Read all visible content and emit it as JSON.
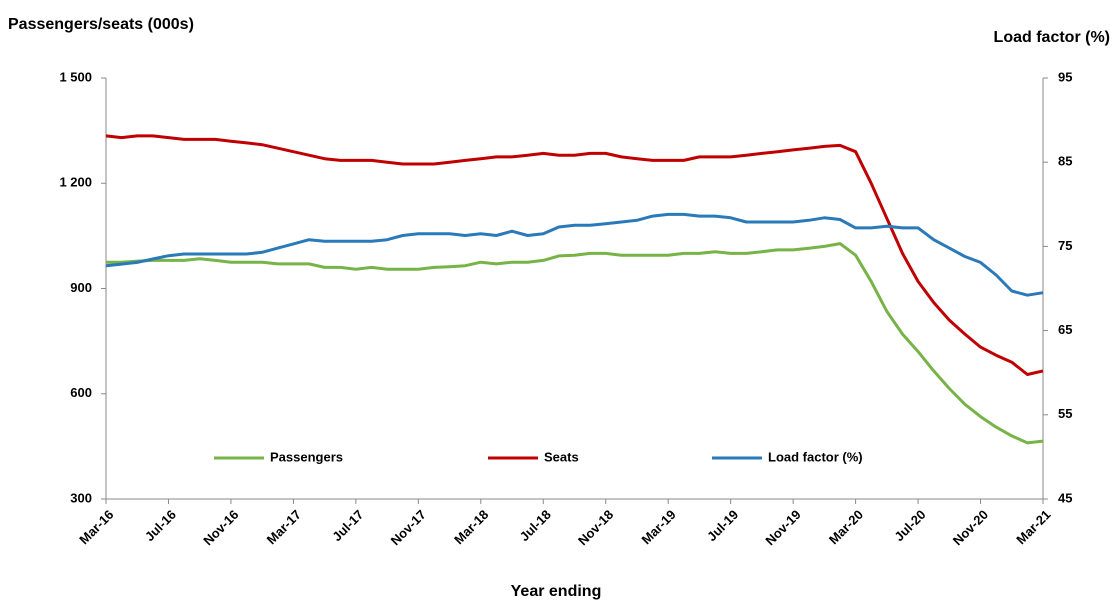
{
  "chart_data": {
    "type": "line",
    "y_label": "Passengers/seats (000s)",
    "y2_label": "Load factor (%)",
    "x_label": "Year ending",
    "categories": [
      "Mar-16",
      null,
      null,
      null,
      "Jul-16",
      null,
      null,
      null,
      "Nov-16",
      null,
      null,
      null,
      "Mar-17",
      null,
      null,
      null,
      "Jul-17",
      null,
      null,
      null,
      "Nov-17",
      null,
      null,
      null,
      "Mar-18",
      null,
      null,
      null,
      "Jul-18",
      null,
      null,
      null,
      "Nov-18",
      null,
      null,
      null,
      "Mar-19",
      null,
      null,
      null,
      "Jul-19",
      null,
      null,
      null,
      "Nov-19",
      null,
      null,
      null,
      "Mar-20",
      null,
      null,
      null,
      "Jul-20",
      null,
      null,
      null,
      "Nov-20",
      null,
      null,
      null,
      "Mar-21"
    ],
    "ylim": [
      300,
      1500
    ],
    "yticks": [
      {
        "value": 300,
        "label": "300"
      },
      {
        "value": 600,
        "label": "600"
      },
      {
        "value": 900,
        "label": "900"
      },
      {
        "value": 1200,
        "label": "1 200"
      },
      {
        "value": 1500,
        "label": "1 500"
      }
    ],
    "y2lim": [
      45,
      95
    ],
    "y2ticks": [
      45,
      55,
      65,
      75,
      85,
      95
    ],
    "legend": "inside-bottom",
    "series": [
      {
        "name": "Passengers",
        "color": "#77b347",
        "values": [
          975,
          975,
          978,
          980,
          980,
          980,
          985,
          980,
          975,
          975,
          975,
          970,
          970,
          970,
          960,
          960,
          955,
          960,
          955,
          955,
          955,
          960,
          962,
          965,
          975,
          970,
          975,
          975,
          980,
          993,
          995,
          1000,
          1000,
          995,
          995,
          995,
          995,
          1000,
          1000,
          1005,
          1000,
          1000,
          1005,
          1010,
          1010,
          1015,
          1020,
          1028,
          995,
          920,
          835,
          770,
          720,
          665,
          615,
          570,
          535,
          505,
          480,
          460,
          465
        ]
      },
      {
        "name": "Seats",
        "color": "#c00000",
        "values": [
          1335,
          1330,
          1335,
          1335,
          1330,
          1325,
          1325,
          1325,
          1320,
          1315,
          1310,
          1300,
          1290,
          1280,
          1270,
          1265,
          1265,
          1265,
          1260,
          1255,
          1255,
          1255,
          1260,
          1265,
          1270,
          1275,
          1275,
          1280,
          1285,
          1280,
          1280,
          1285,
          1285,
          1275,
          1270,
          1265,
          1265,
          1265,
          1275,
          1275,
          1275,
          1280,
          1285,
          1290,
          1295,
          1300,
          1305,
          1308,
          1290,
          1200,
          1100,
          1000,
          920,
          860,
          810,
          770,
          733,
          710,
          690,
          655,
          665
        ]
      },
      {
        "name": "Load factor (%)",
        "color": "#2a7ab9",
        "axis": "y2",
        "values": [
          72.7,
          72.9,
          73.1,
          73.5,
          73.9,
          74.1,
          74.1,
          74.1,
          74.1,
          74.1,
          74.3,
          74.8,
          75.3,
          75.8,
          75.6,
          75.6,
          75.6,
          75.6,
          75.8,
          76.3,
          76.5,
          76.5,
          76.5,
          76.3,
          76.5,
          76.3,
          76.8,
          76.3,
          76.5,
          77.3,
          77.5,
          77.5,
          77.7,
          77.9,
          78.1,
          78.6,
          78.8,
          78.8,
          78.6,
          78.6,
          78.4,
          77.9,
          77.9,
          77.9,
          77.9,
          78.1,
          78.4,
          78.2,
          77.2,
          77.2,
          77.4,
          77.2,
          77.2,
          75.8,
          74.8,
          73.8,
          73.1,
          71.6,
          69.7,
          69.2,
          69.5
        ]
      }
    ]
  }
}
